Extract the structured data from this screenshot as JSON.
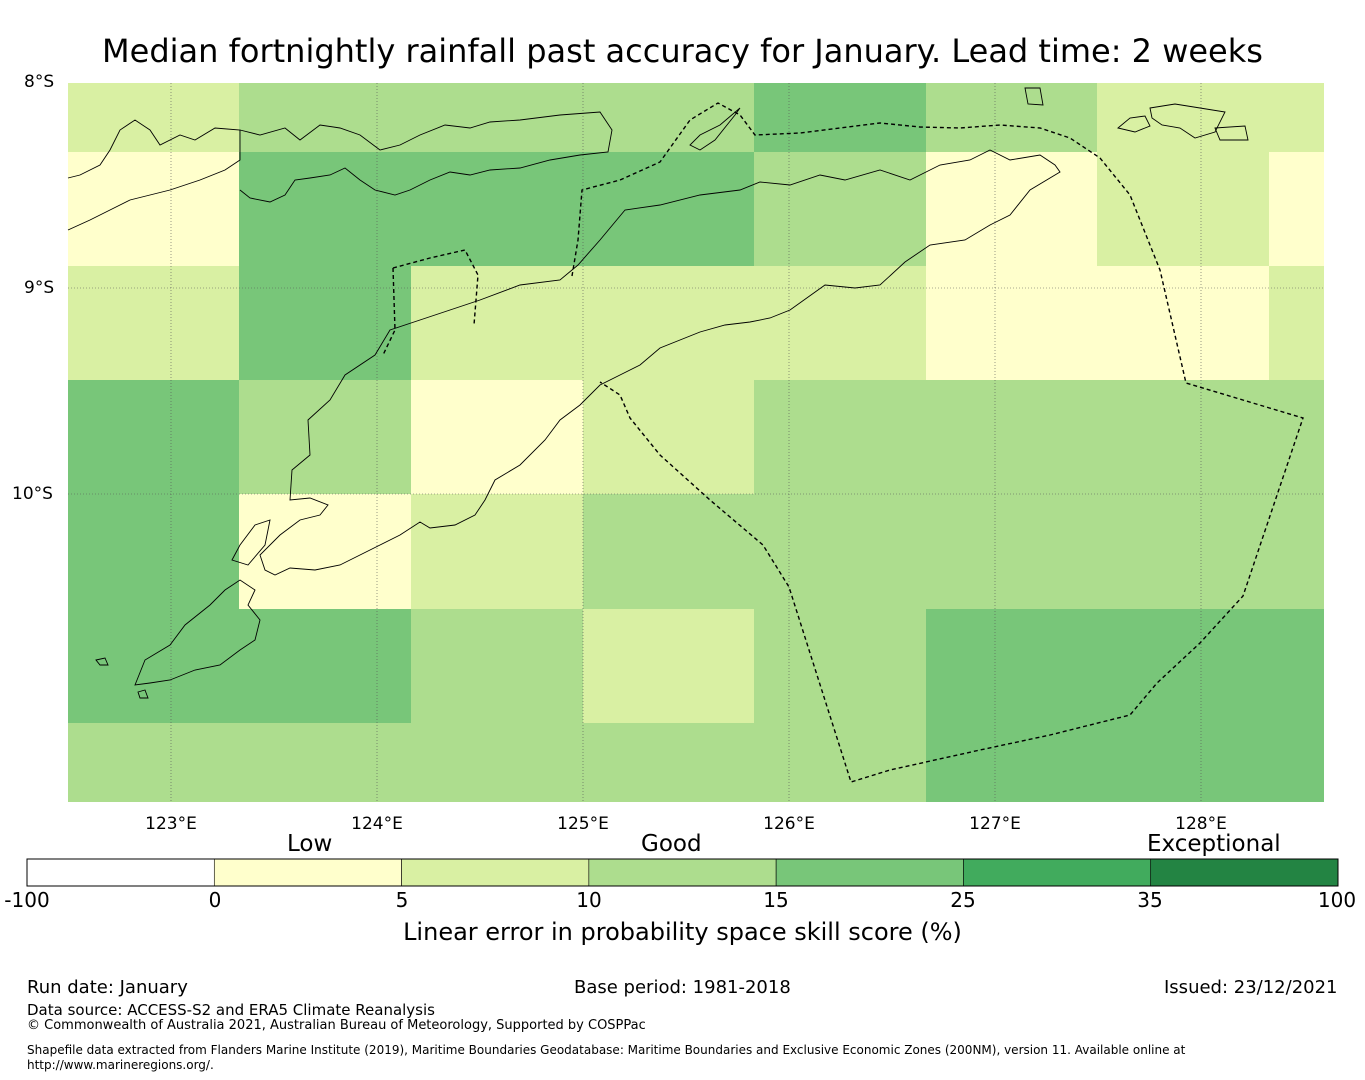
{
  "title": "Median fortnightly rainfall past accuracy for January. Lead time: 2 weeks",
  "map": {
    "lat_labels": [
      "8°S",
      "9°S",
      "10°S"
    ],
    "lon_labels": [
      "123°E",
      "124°E",
      "125°E",
      "126°E",
      "127°E",
      "128°E"
    ],
    "grid_skill_classes": [
      [
        1,
        2,
        2,
        2,
        3,
        2,
        1,
        1
      ],
      [
        0,
        3,
        3,
        3,
        2,
        0,
        1,
        0
      ],
      [
        1,
        3,
        1,
        1,
        1,
        0,
        0,
        1
      ],
      [
        3,
        2,
        0,
        1,
        2,
        2,
        2,
        2
      ],
      [
        3,
        0,
        1,
        2,
        2,
        2,
        2,
        2
      ],
      [
        3,
        3,
        2,
        1,
        2,
        3,
        3,
        3
      ],
      [
        2,
        2,
        2,
        2,
        2,
        3,
        3,
        3
      ]
    ]
  },
  "colorbar": {
    "categories": [
      "Low",
      "Good",
      "Exceptional"
    ],
    "ticks": [
      "-100",
      "0",
      "5",
      "10",
      "15",
      "25",
      "35",
      "100"
    ],
    "colors": [
      "#ffffff",
      "#ffffcc",
      "#d9f0a3",
      "#addd8e",
      "#78c679",
      "#41ab5d",
      "#238443"
    ],
    "label": "Linear error in probability space skill score (%)"
  },
  "footer": {
    "run_date": "Run date: January",
    "base_period": "Base period: 1981-2018",
    "issued": "Issued: 23/12/2021",
    "data_source": "Data source: ACCESS-S2 and ERA5 Climate Reanalysis",
    "copyright": "© Commonwealth of Australia 2021, Australian Bureau of Meteorology, Supported by COSPPac",
    "shapefile_line1": "Shapefile data extracted from Flanders Marine Institute (2019), Maritime Boundaries Geodatabase: Maritime Boundaries and Exclusive Economic Zones (200NM), version 11. Available online at",
    "shapefile_line2": "http://www.marineregions.org/."
  }
}
